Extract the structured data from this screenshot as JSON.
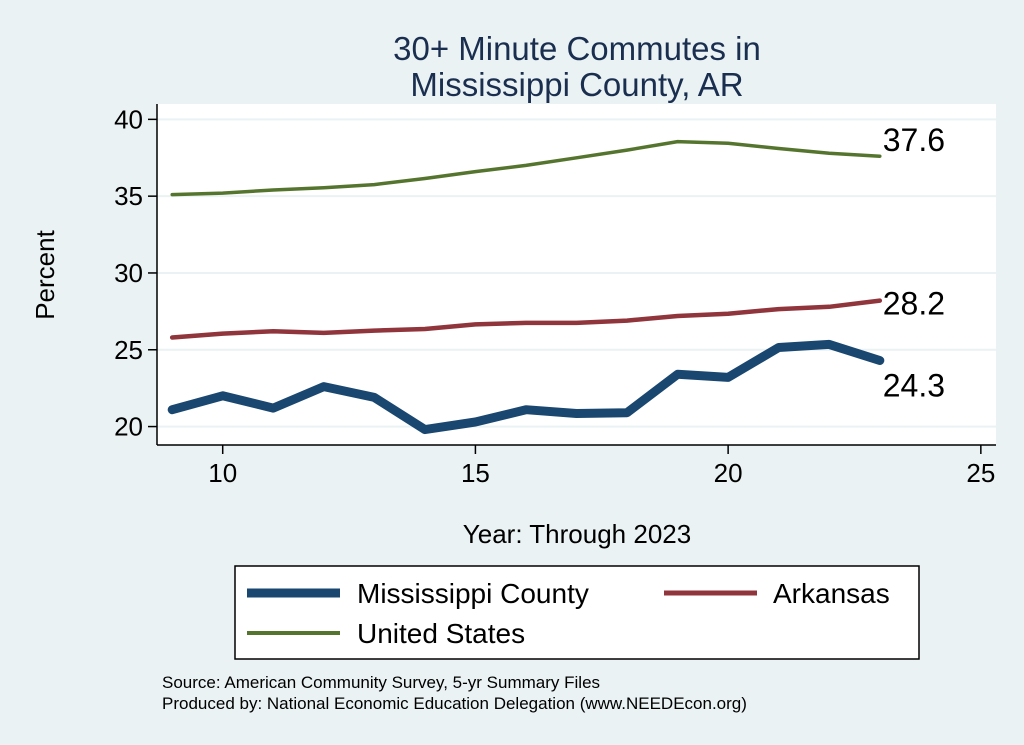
{
  "chart_data": {
    "type": "line",
    "title": [
      "30+ Minute Commutes in",
      "Mississippi County, AR"
    ],
    "xlabel": "Year: Through 2023",
    "ylabel": "Percent",
    "xlim": [
      8.7,
      25.3
    ],
    "ylim": [
      18.8,
      41
    ],
    "xticks": [
      10,
      15,
      20,
      25
    ],
    "yticks": [
      20,
      25,
      30,
      35,
      40
    ],
    "grid": true,
    "x": [
      9,
      10,
      11,
      12,
      13,
      14,
      15,
      16,
      17,
      18,
      19,
      20,
      21,
      22,
      23
    ],
    "series": [
      {
        "name": "Mississippi County",
        "color": "#1a476f",
        "values": [
          21.1,
          22.0,
          21.2,
          22.6,
          21.9,
          19.8,
          20.3,
          21.1,
          20.85,
          20.9,
          23.4,
          23.2,
          25.15,
          25.35,
          24.3
        ],
        "end_label": "24.3"
      },
      {
        "name": "Arkansas",
        "color": "#90353b",
        "values": [
          25.8,
          26.05,
          26.2,
          26.1,
          26.25,
          26.35,
          26.65,
          26.75,
          26.75,
          26.9,
          27.2,
          27.35,
          27.65,
          27.8,
          28.2
        ],
        "end_label": "28.2"
      },
      {
        "name": "United States",
        "color": "#55752f",
        "values": [
          35.1,
          35.2,
          35.4,
          35.55,
          35.75,
          36.15,
          36.6,
          37.0,
          37.5,
          38.0,
          38.55,
          38.45,
          38.1,
          37.8,
          37.6
        ],
        "end_label": "37.6"
      }
    ],
    "legend": {
      "position": "bottom",
      "entries": [
        "Mississippi County",
        "Arkansas",
        "United States"
      ]
    },
    "notes": [
      "Source: American Community Survey, 5-yr Summary Files",
      "Produced by: National Economic Education Delegation (www.NEEDEcon.org)"
    ]
  }
}
